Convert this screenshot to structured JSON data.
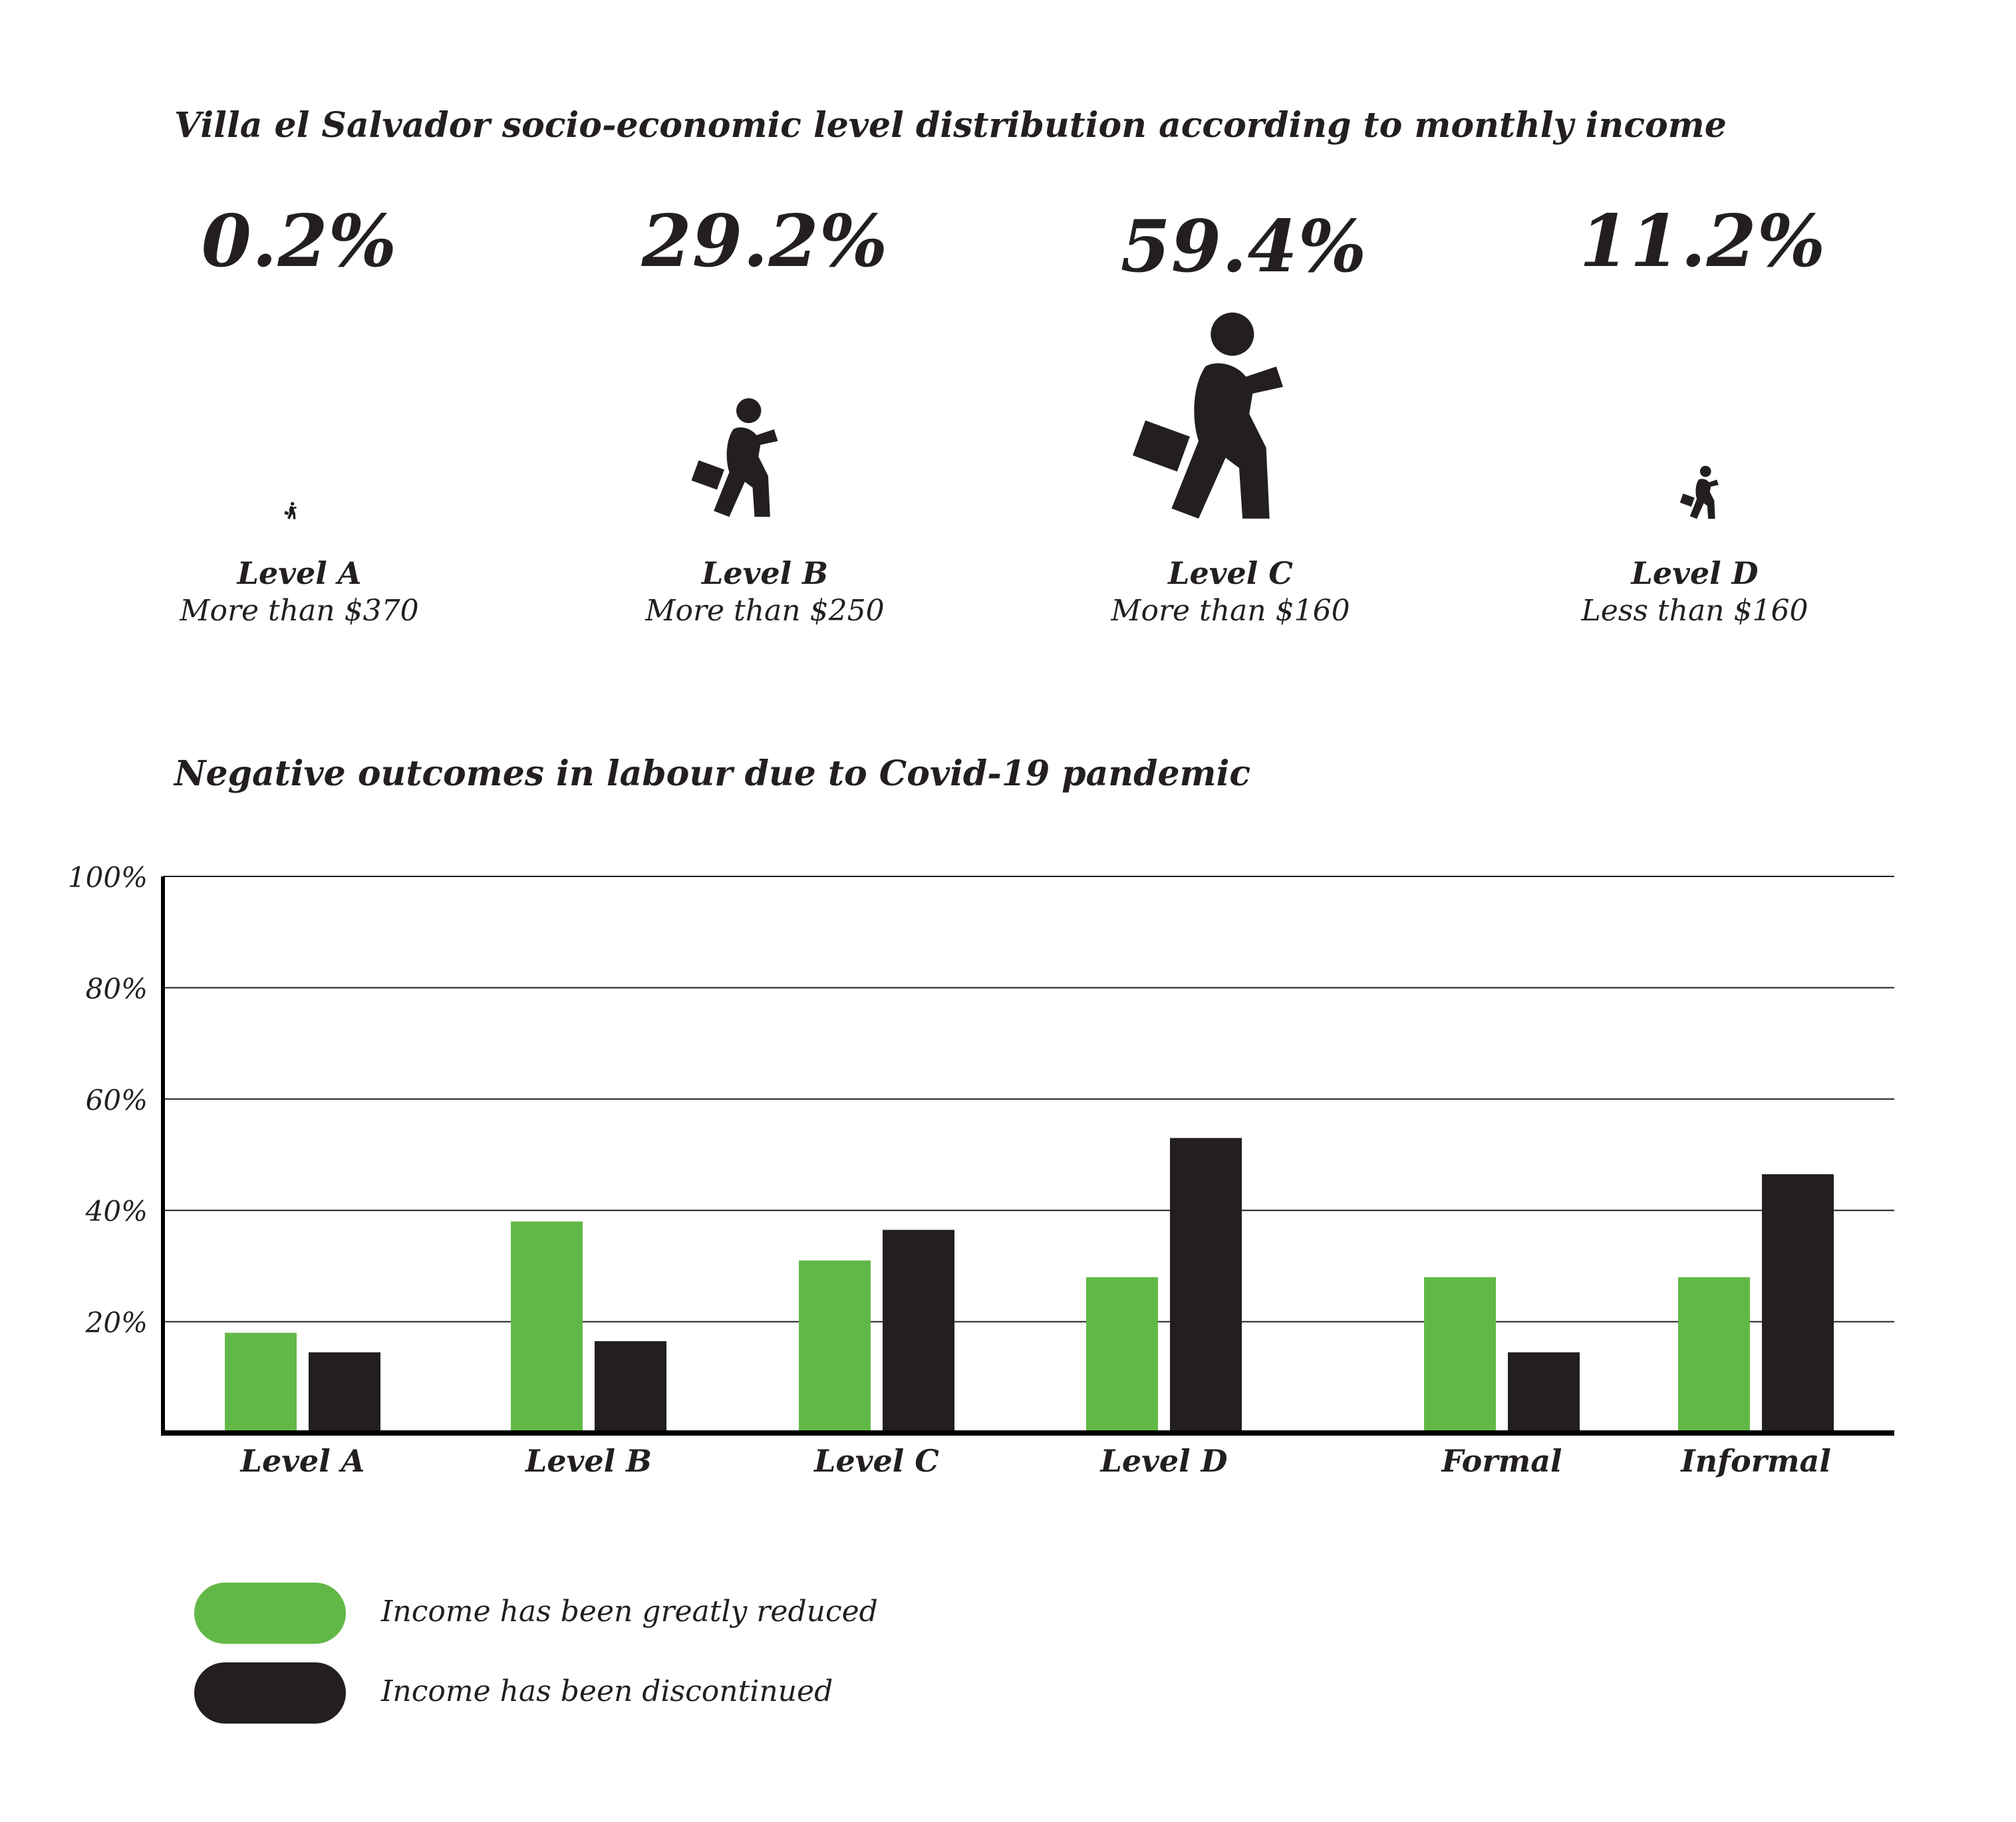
{
  "distribution": {
    "title": "Villa el Salvador socio-economic level distribution according to monthly income",
    "levels": [
      {
        "percent": "0.2%",
        "value": 0.2,
        "name": "Level A",
        "range": "More than $370"
      },
      {
        "percent": "29.2%",
        "value": 29.2,
        "name": "Level B",
        "range": "More than $250"
      },
      {
        "percent": "59.4%",
        "value": 59.4,
        "name": "Level C",
        "range": "More than $160"
      },
      {
        "percent": "11.2%",
        "value": 11.2,
        "name": "Level D",
        "range": "Less than $160"
      }
    ],
    "icon": "walking-person-with-briefcase-icon"
  },
  "colors": {
    "green": "#62b847",
    "black": "#231f20",
    "grid": "#231f20"
  },
  "chart_data": {
    "type": "bar",
    "title": "Negative outcomes in labour due to Covid-19 pandemic",
    "categories": [
      "Level A",
      "Level B",
      "Level C",
      "Level D",
      "Formal",
      "Informal"
    ],
    "series": [
      {
        "name": "Income has been greatly reduced",
        "color": "#62b847",
        "values": [
          18,
          38,
          31,
          28,
          28,
          28
        ]
      },
      {
        "name": "Income has been discontinued",
        "color": "#231f20",
        "values": [
          14.5,
          16.5,
          36.5,
          53,
          14.5,
          46.5
        ]
      }
    ],
    "yticks": [
      20,
      40,
      60,
      80,
      100
    ],
    "ytick_labels": [
      "20%",
      "40%",
      "60%",
      "80%",
      "100%"
    ],
    "ylim": [
      0,
      100
    ],
    "xlabel": "",
    "ylabel": "",
    "grid": true,
    "legend": "bottom-left"
  }
}
